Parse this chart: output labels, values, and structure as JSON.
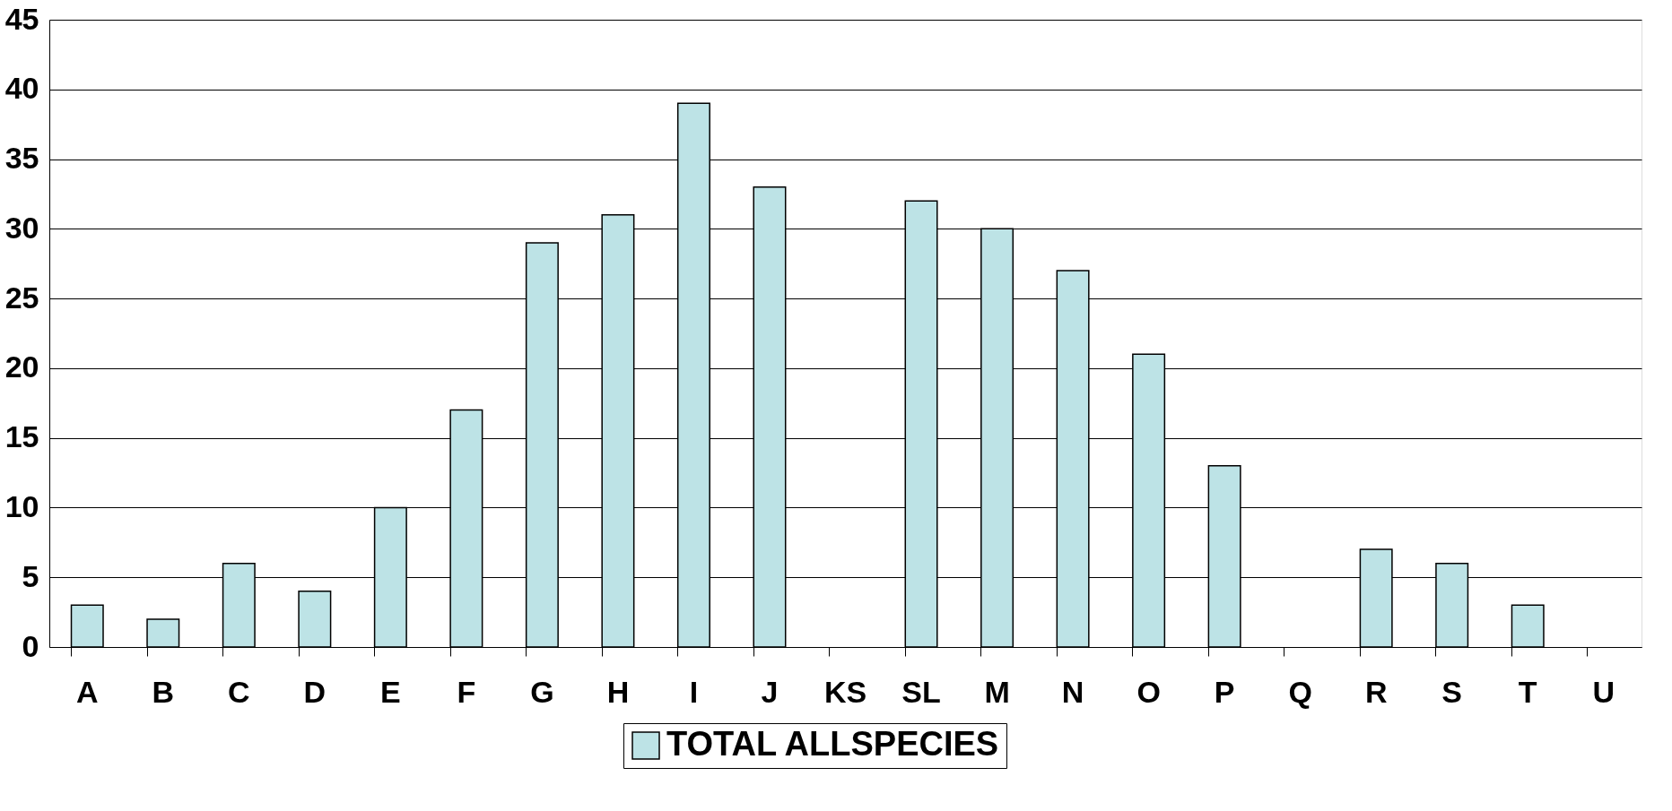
{
  "chart_data": {
    "type": "bar",
    "categories": [
      "A",
      "B",
      "C",
      "D",
      "E",
      "F",
      "G",
      "H",
      "I",
      "J",
      "KS",
      "SL",
      "M",
      "N",
      "O",
      "P",
      "Q",
      "R",
      "S",
      "T",
      "U"
    ],
    "series": [
      {
        "name": "TOTAL ALLSPECIES",
        "color": "#bde3e6",
        "values": [
          3,
          2,
          6,
          4,
          10,
          17,
          29,
          31,
          39,
          33,
          null,
          32,
          30,
          27,
          21,
          13,
          null,
          7,
          6,
          3,
          null
        ]
      }
    ],
    "ylim": [
      0,
      45
    ],
    "yticks": [
      0,
      5,
      10,
      15,
      20,
      25,
      30,
      35,
      40,
      45
    ],
    "grid": "y",
    "legend": "bottom"
  }
}
